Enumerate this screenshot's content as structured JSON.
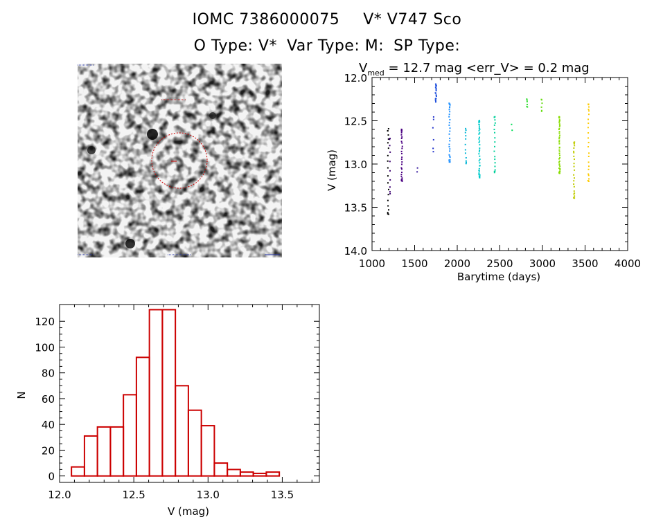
{
  "header": {
    "id_label": "IOMC 7386000075",
    "name_label": "V* V747 Sco",
    "otype_label": "O Type: V*",
    "vartype_label": "Var Type: M:",
    "sptype_label": "SP Type:"
  },
  "colors": {
    "histogram": "#cc0000",
    "marker": "#cc0000",
    "axis": "#000000",
    "light_curve_palette": [
      "#000000",
      "#4b0082",
      "#2233cc",
      "#1e90ff",
      "#00cccc",
      "#00dd55",
      "#88dd00",
      "#aacc00",
      "#ffcc00"
    ]
  },
  "sky_image": {
    "marker": "red dashed circle",
    "corner_labels": [
      "",
      "",
      "",
      ""
    ]
  },
  "chart_data": [
    {
      "type": "scatter",
      "title_parts": {
        "sym": "V",
        "sub": "med",
        "rest": " = 12.7 mag <err_V> = 0.2 mag"
      },
      "xlabel": "Barytime (days)",
      "ylabel": "V (mag)",
      "xlim": [
        1000,
        4000
      ],
      "ylim": [
        14.0,
        12.0
      ],
      "y_inverted": true,
      "grid": false,
      "x_ticks": [
        1000,
        1500,
        2000,
        2500,
        3000,
        3500,
        4000
      ],
      "x_tick_labels": [
        "1000",
        "1500",
        "2000",
        "2500",
        "3000",
        "3500",
        "4000"
      ],
      "y_ticks": [
        12.0,
        12.5,
        13.0,
        13.5,
        14.0
      ],
      "y_tick_labels": [
        "12.0",
        "12.5",
        "13.0",
        "13.5",
        "14.0"
      ],
      "clusters": [
        {
          "x": 1190,
          "y_min": 12.6,
          "y_max": 13.58,
          "n": 20,
          "color": "#000000"
        },
        {
          "x": 1210,
          "y_min": 12.7,
          "y_max": 13.35,
          "n": 10,
          "color": "#3a0070"
        },
        {
          "x": 1350,
          "y_min": 12.6,
          "y_max": 13.2,
          "n": 30,
          "color": "#4b0082"
        },
        {
          "x": 1530,
          "y_min": 13.05,
          "y_max": 13.1,
          "n": 2,
          "color": "#3b1fa0"
        },
        {
          "x": 1720,
          "y_min": 12.45,
          "y_max": 12.85,
          "n": 6,
          "color": "#2233cc"
        },
        {
          "x": 1750,
          "y_min": 12.08,
          "y_max": 12.28,
          "n": 18,
          "color": "#1f50dd"
        },
        {
          "x": 1910,
          "y_min": 12.3,
          "y_max": 12.98,
          "n": 30,
          "color": "#1e90ff"
        },
        {
          "x": 2100,
          "y_min": 12.6,
          "y_max": 13.0,
          "n": 12,
          "color": "#00b5d5"
        },
        {
          "x": 2260,
          "y_min": 12.5,
          "y_max": 13.15,
          "n": 40,
          "color": "#00cccc"
        },
        {
          "x": 2440,
          "y_min": 12.45,
          "y_max": 13.1,
          "n": 20,
          "color": "#00d09a"
        },
        {
          "x": 2640,
          "y_min": 12.55,
          "y_max": 12.6,
          "n": 2,
          "color": "#00dd55"
        },
        {
          "x": 2820,
          "y_min": 12.25,
          "y_max": 12.35,
          "n": 6,
          "color": "#33dd33"
        },
        {
          "x": 2990,
          "y_min": 12.25,
          "y_max": 12.4,
          "n": 6,
          "color": "#66dd11"
        },
        {
          "x": 3200,
          "y_min": 12.45,
          "y_max": 13.1,
          "n": 45,
          "color": "#88dd00"
        },
        {
          "x": 3370,
          "y_min": 12.75,
          "y_max": 13.4,
          "n": 25,
          "color": "#c0cc00"
        },
        {
          "x": 3540,
          "y_min": 12.3,
          "y_max": 13.2,
          "n": 25,
          "color": "#ffcc00"
        }
      ]
    },
    {
      "type": "bar",
      "title": "",
      "xlabel": "V (mag)",
      "ylabel": "N",
      "xlim": [
        12.0,
        13.75
      ],
      "ylim": [
        -5,
        133
      ],
      "grid": false,
      "x_ticks": [
        12.0,
        12.5,
        13.0,
        13.5
      ],
      "x_tick_labels": [
        "12.0",
        "12.5",
        "13.0",
        "13.5"
      ],
      "y_ticks": [
        0,
        20,
        40,
        60,
        80,
        100,
        120
      ],
      "y_tick_labels": [
        "0",
        "20",
        "40",
        "60",
        "80",
        "100",
        "120"
      ],
      "bin_start": 12.08,
      "bin_width": 0.0875,
      "values": [
        7,
        31,
        38,
        38,
        63,
        92,
        129,
        129,
        70,
        51,
        39,
        10,
        5,
        3,
        2,
        3
      ]
    }
  ]
}
